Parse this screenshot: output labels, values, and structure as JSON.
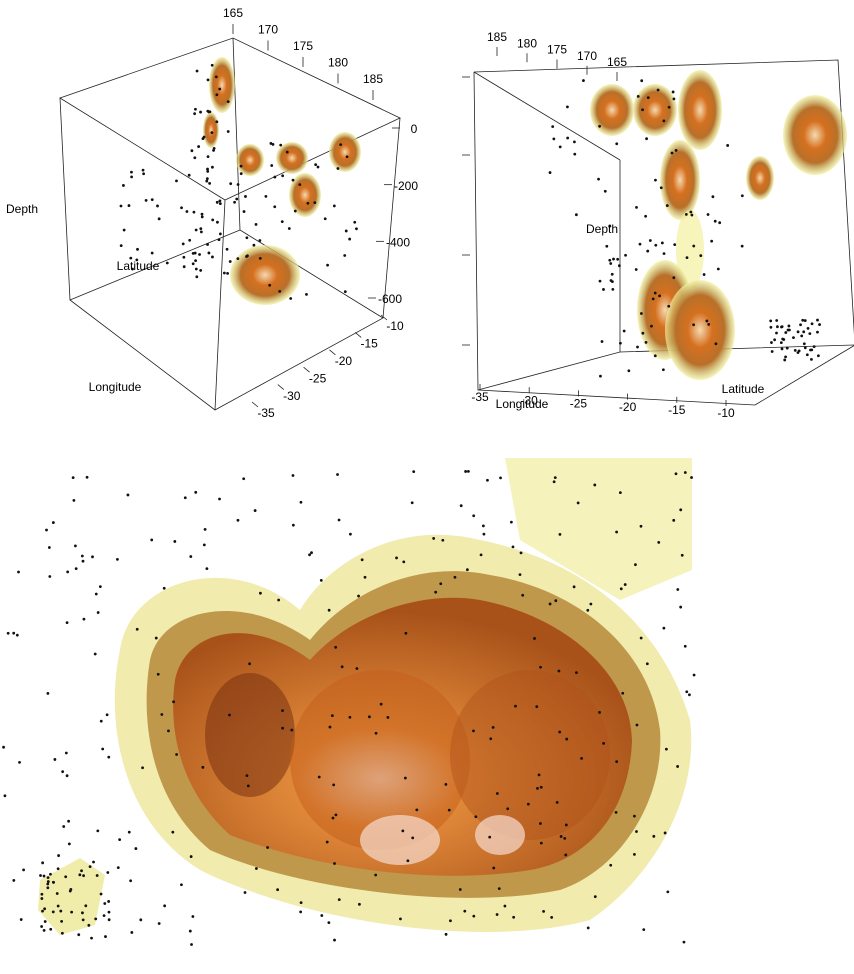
{
  "chart_data": [
    {
      "type": "scatter3d",
      "xlabel": "Longitude",
      "ylabel": "Latitude",
      "zlabel": "Depth",
      "xlim": [
        165,
        185
      ],
      "xticks": [
        165,
        170,
        175,
        180,
        185
      ],
      "ylim": [
        -35,
        -10
      ],
      "yticks": [
        -35,
        -30,
        -25,
        -20,
        -15,
        -10
      ],
      "zlim": [
        -600,
        0
      ],
      "zticks": [
        -600,
        -400,
        -200,
        0
      ]
    },
    {
      "type": "scatter3d",
      "xlabel": "Longitude",
      "ylabel": "Latitude",
      "zlabel": "Depth",
      "xlim": [
        165,
        185
      ],
      "xticks": [
        165,
        170,
        175,
        180,
        185
      ],
      "ylim": [
        -35,
        -10
      ],
      "yticks": [
        -35,
        -30,
        -25,
        -20,
        -15,
        -10
      ]
    }
  ]
}
